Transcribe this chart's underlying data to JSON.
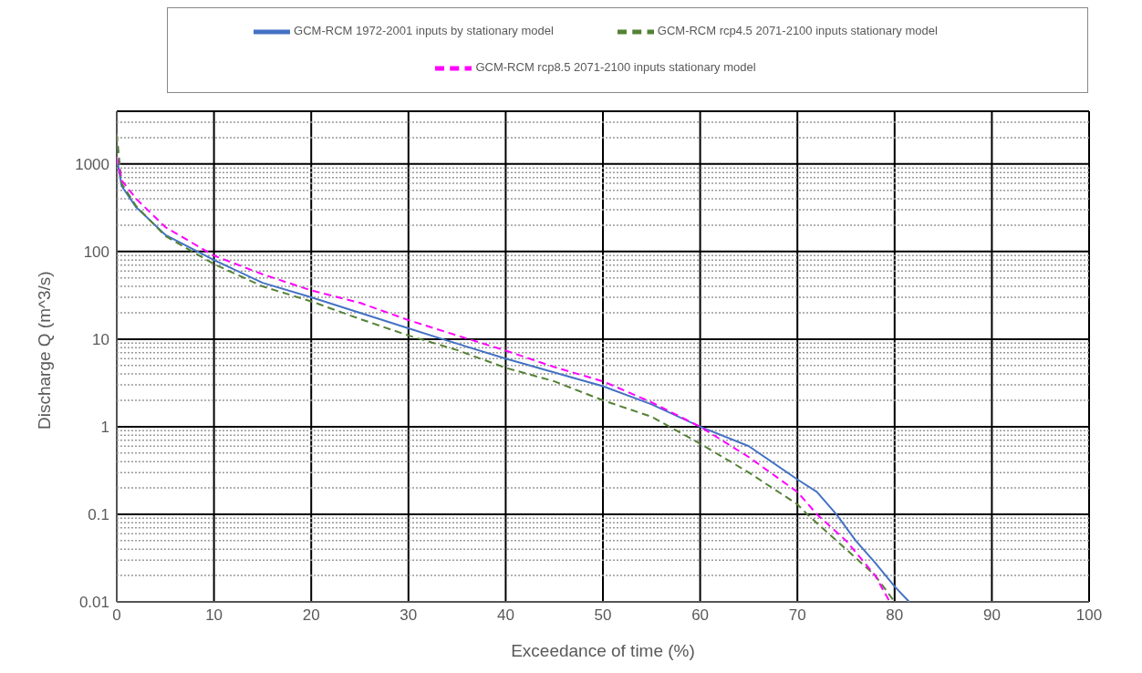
{
  "chart_data": {
    "type": "line",
    "xlabel": "Exceedance of time (%)",
    "ylabel": "Discharge Q (m^3/s)",
    "log": "y",
    "grid": true,
    "legend": "top",
    "marker": "none",
    "xlim": [
      0,
      100
    ],
    "xticks": [
      0,
      10,
      20,
      30,
      40,
      50,
      60,
      70,
      80,
      90,
      100
    ],
    "ylim": [
      0.01,
      4000
    ],
    "yticks": [
      0.01,
      0.1,
      1,
      10,
      100,
      1000
    ],
    "series": [
      {
        "name": "GCM-RCM 1972-2001 inputs by stationary model",
        "color": "#4472c4",
        "line_style": "solid",
        "x": [
          0,
          0.5,
          2,
          5,
          10,
          15,
          20,
          25,
          30,
          33.5,
          40,
          47,
          50,
          55,
          60,
          65,
          70,
          72,
          74,
          76,
          78,
          80,
          81.5
        ],
        "values": [
          1200,
          560,
          320,
          155,
          80,
          44,
          30,
          20,
          13.3,
          10,
          6,
          3.6,
          2.9,
          1.8,
          1,
          0.6,
          0.25,
          0.18,
          0.1,
          0.05,
          0.028,
          0.015,
          0.01
        ]
      },
      {
        "name": "GCM-RCM rcp4.5 2071-2100 inputs stationary model",
        "color": "#548235",
        "line_style": "dashed",
        "x": [
          0,
          0.5,
          2,
          5,
          10,
          15,
          20,
          25,
          30,
          35,
          40,
          45,
          50,
          55,
          60,
          65,
          70,
          71,
          75,
          78,
          80
        ],
        "values": [
          2200,
          600,
          330,
          150,
          72,
          40,
          27,
          17,
          11,
          7.5,
          4.7,
          3.3,
          2,
          1.3,
          0.64,
          0.3,
          0.13,
          0.1,
          0.04,
          0.02,
          0.01
        ]
      },
      {
        "name": "GCM-RCM rcp8.5 2071-2100 inputs stationary model",
        "color": "#ff00ff",
        "line_style": "dashed",
        "x": [
          0,
          0.5,
          2,
          5,
          10,
          15,
          20,
          25,
          30,
          35,
          40,
          45,
          50,
          55,
          60,
          65,
          70,
          72,
          75,
          78,
          79.5
        ],
        "values": [
          1200,
          650,
          400,
          190,
          90,
          55,
          36,
          26,
          16.5,
          11,
          7.4,
          4.8,
          3.3,
          1.9,
          1,
          0.45,
          0.18,
          0.1,
          0.05,
          0.02,
          0.01
        ]
      }
    ]
  }
}
